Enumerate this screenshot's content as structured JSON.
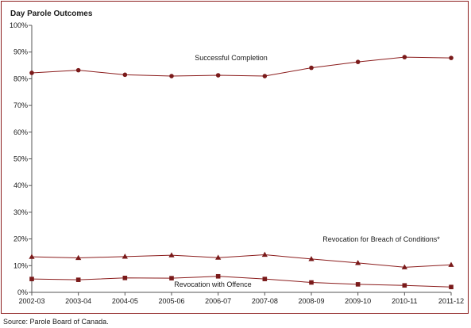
{
  "chart_data": {
    "type": "line",
    "title": "Day Parole Outcomes",
    "xlabel": "",
    "ylabel": "",
    "ylim": [
      0,
      100
    ],
    "y_tick_values": [
      0,
      10,
      20,
      30,
      40,
      50,
      60,
      70,
      80,
      90,
      100
    ],
    "y_tick_suffix": "%",
    "grid": false,
    "categories": [
      "2002-03",
      "2003-04",
      "2004-05",
      "2005-06",
      "2006-07",
      "2007-08",
      "2008-09",
      "2009-10",
      "2010-11",
      "2011-12"
    ],
    "series": [
      {
        "name": "Successful Completion",
        "marker": "circle",
        "values": [
          82.2,
          83.2,
          81.5,
          81.0,
          81.3,
          81.0,
          84.1,
          86.3,
          88.1,
          87.8
        ]
      },
      {
        "name": "Revocation for Breach of Conditions*",
        "marker": "triangle",
        "values": [
          13.3,
          12.9,
          13.4,
          13.9,
          13.0,
          14.1,
          12.5,
          11.0,
          9.4,
          10.3
        ]
      },
      {
        "name": "Revocation with Offence",
        "marker": "square",
        "values": [
          5.0,
          4.7,
          5.4,
          5.3,
          6.0,
          5.0,
          3.7,
          3.0,
          2.6,
          2.0
        ]
      }
    ],
    "colors": {
      "line": "#8b1c1c",
      "marker": "#7a1a1a",
      "frame": "#8b1c1c",
      "axis": "#555555"
    }
  },
  "source": "Source:  Parole Board of Canada."
}
